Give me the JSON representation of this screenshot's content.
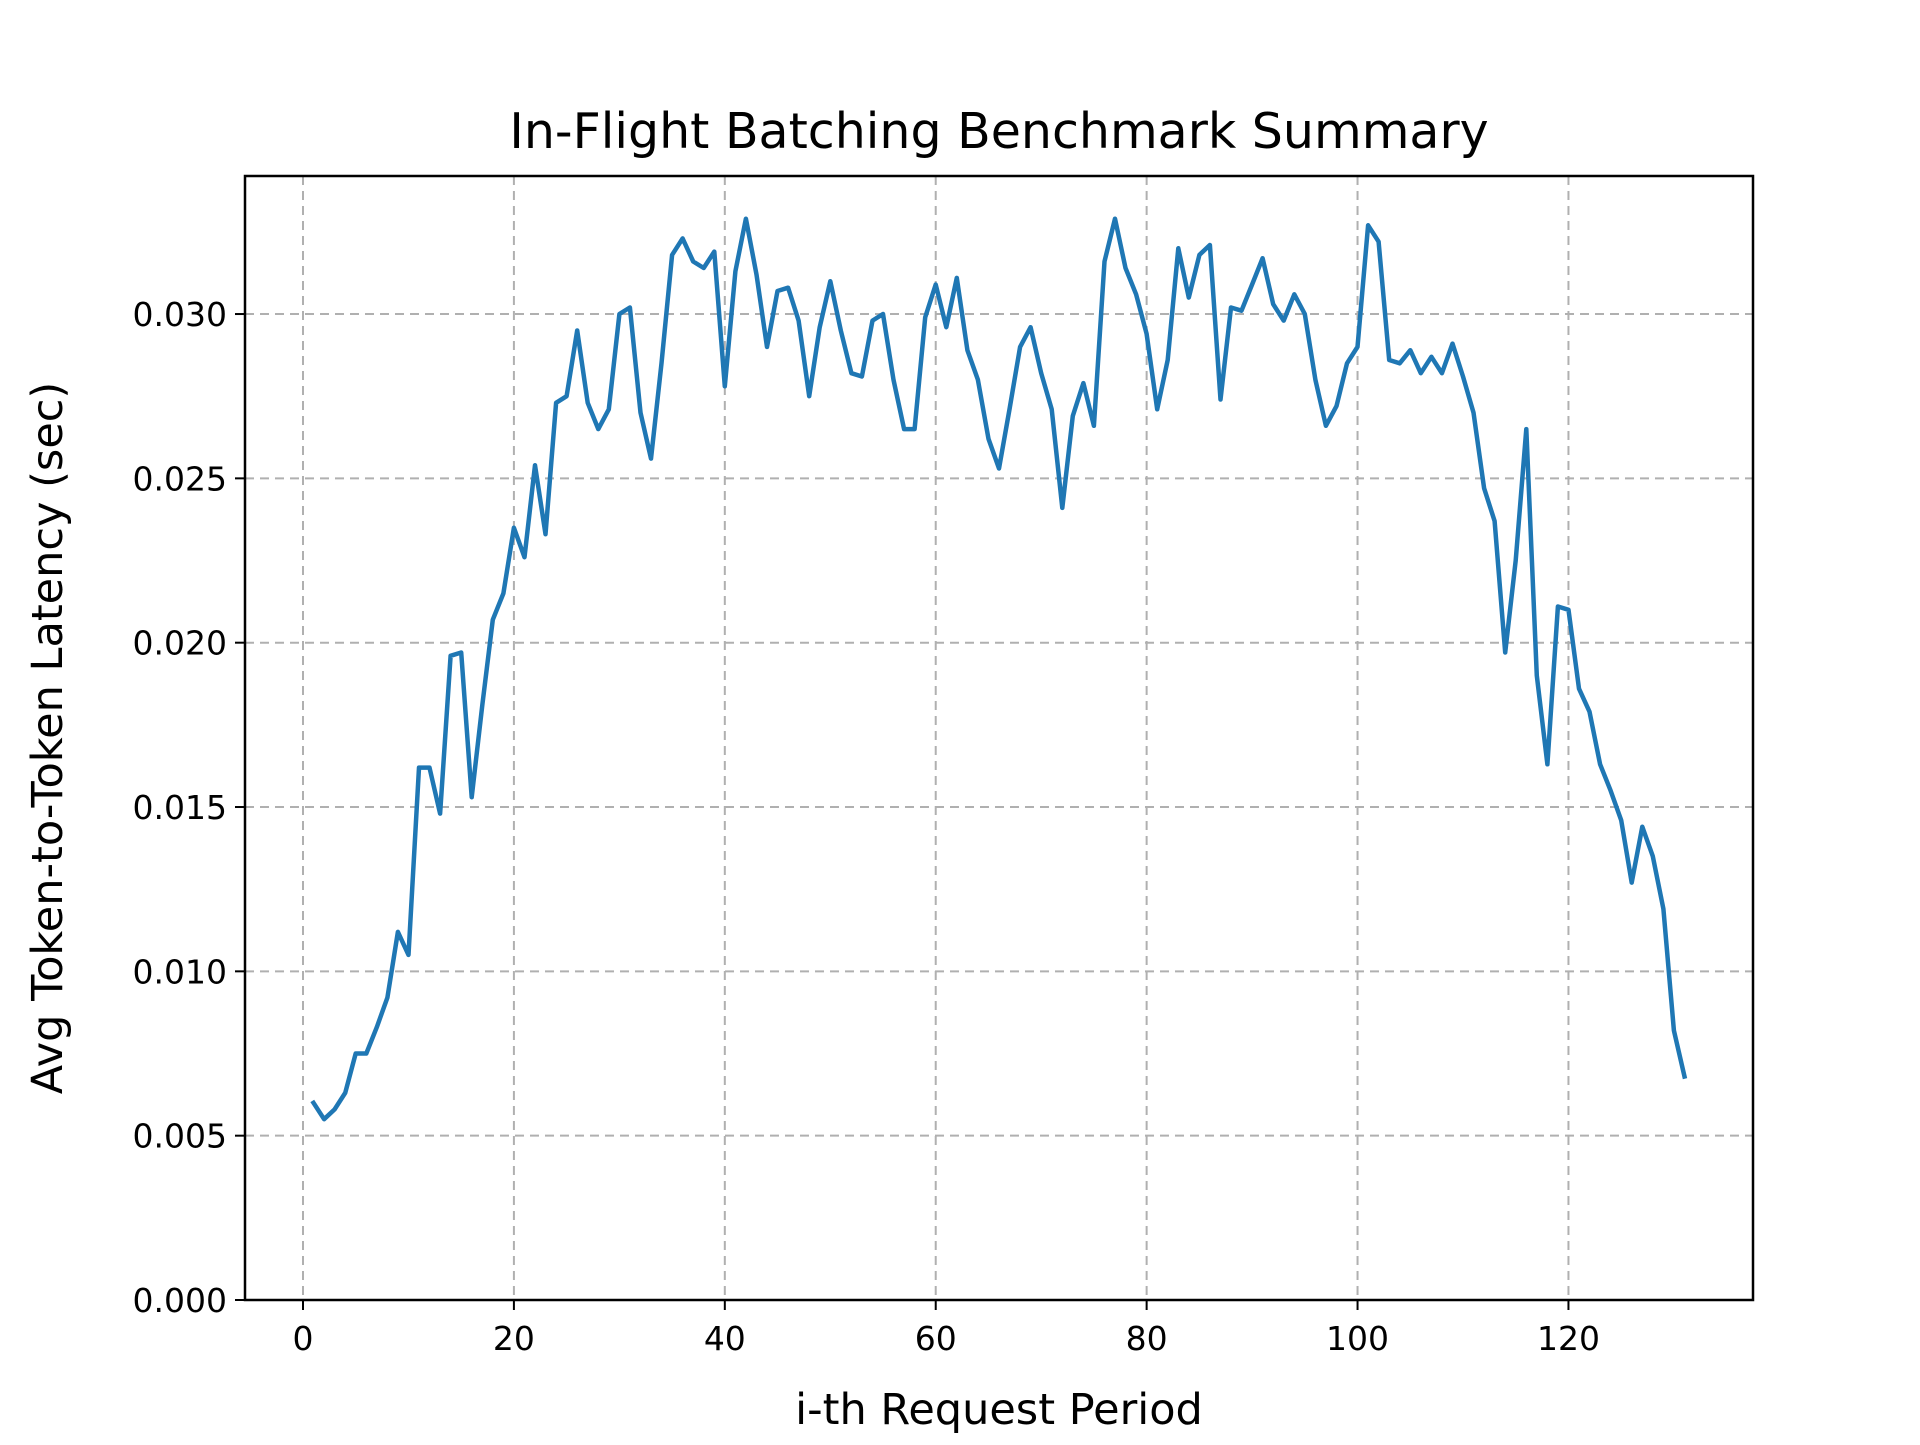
{
  "chart_data": {
    "type": "line",
    "title": "In-Flight Batching Benchmark Summary",
    "xlabel": "i-th Request Period",
    "ylabel": "Avg Token-to-Token Latency (sec)",
    "xlim": [
      -5.5,
      137.5
    ],
    "ylim": [
      0.0,
      0.0342
    ],
    "xticks": [
      0,
      20,
      40,
      60,
      80,
      100,
      120
    ],
    "xtick_labels": [
      "0",
      "20",
      "40",
      "60",
      "80",
      "100",
      "120"
    ],
    "yticks": [
      0.0,
      0.005,
      0.01,
      0.015,
      0.02,
      0.025,
      0.03
    ],
    "ytick_labels": [
      "0.000",
      "0.005",
      "0.010",
      "0.015",
      "0.020",
      "0.025",
      "0.030"
    ],
    "grid": true,
    "grid_style": "dashed",
    "legend": false,
    "series": [
      {
        "color": "#1f77b4",
        "x": [
          1,
          2,
          3,
          4,
          5,
          6,
          7,
          8,
          9,
          10,
          11,
          12,
          13,
          14,
          15,
          16,
          17,
          18,
          19,
          20,
          21,
          22,
          23,
          24,
          25,
          26,
          27,
          28,
          29,
          30,
          31,
          32,
          33,
          34,
          35,
          36,
          37,
          38,
          39,
          40,
          41,
          42,
          43,
          44,
          45,
          46,
          47,
          48,
          49,
          50,
          51,
          52,
          53,
          54,
          55,
          56,
          57,
          58,
          59,
          60,
          61,
          62,
          63,
          64,
          65,
          66,
          67,
          68,
          69,
          70,
          71,
          72,
          73,
          74,
          75,
          76,
          77,
          78,
          79,
          80,
          81,
          82,
          83,
          84,
          85,
          86,
          87,
          88,
          89,
          90,
          91,
          92,
          93,
          94,
          95,
          96,
          97,
          98,
          99,
          100,
          101,
          102,
          103,
          104,
          105,
          106,
          107,
          108,
          109,
          110,
          111,
          112,
          113,
          114,
          115,
          116,
          117,
          118,
          119,
          120,
          121,
          122,
          123,
          124,
          125,
          126,
          127,
          128,
          129,
          130,
          131
        ],
        "values": [
          0.006,
          0.0055,
          0.0058,
          0.0063,
          0.0075,
          0.0075,
          0.0083,
          0.0092,
          0.0112,
          0.0105,
          0.0162,
          0.0162,
          0.0148,
          0.0196,
          0.0197,
          0.0153,
          0.0181,
          0.0207,
          0.0215,
          0.0235,
          0.0226,
          0.0254,
          0.0233,
          0.0273,
          0.0275,
          0.0295,
          0.0273,
          0.0265,
          0.0271,
          0.03,
          0.0302,
          0.027,
          0.0256,
          0.0285,
          0.0318,
          0.0323,
          0.0316,
          0.0314,
          0.0319,
          0.0278,
          0.0313,
          0.0329,
          0.0312,
          0.029,
          0.0307,
          0.0308,
          0.0298,
          0.0275,
          0.0296,
          0.031,
          0.0295,
          0.0282,
          0.0281,
          0.0298,
          0.03,
          0.028,
          0.0265,
          0.0265,
          0.0299,
          0.0309,
          0.0296,
          0.0311,
          0.0289,
          0.028,
          0.0262,
          0.0253,
          0.0271,
          0.029,
          0.0296,
          0.0282,
          0.0271,
          0.0241,
          0.0269,
          0.0279,
          0.0266,
          0.0316,
          0.0329,
          0.0314,
          0.0306,
          0.0294,
          0.0271,
          0.0286,
          0.032,
          0.0305,
          0.0318,
          0.0321,
          0.0274,
          0.0302,
          0.0301,
          0.0309,
          0.0317,
          0.0303,
          0.0298,
          0.0306,
          0.03,
          0.028,
          0.0266,
          0.0272,
          0.0285,
          0.029,
          0.0327,
          0.0322,
          0.0286,
          0.0285,
          0.0289,
          0.0282,
          0.0287,
          0.0282,
          0.0291,
          0.0281,
          0.027,
          0.0247,
          0.0237,
          0.0197,
          0.0225,
          0.0265,
          0.019,
          0.0163,
          0.0211,
          0.021,
          0.0186,
          0.0179,
          0.0163,
          0.0155,
          0.0146,
          0.0127,
          0.0144,
          0.0135,
          0.0119,
          0.0082,
          0.0068
        ]
      }
    ]
  }
}
